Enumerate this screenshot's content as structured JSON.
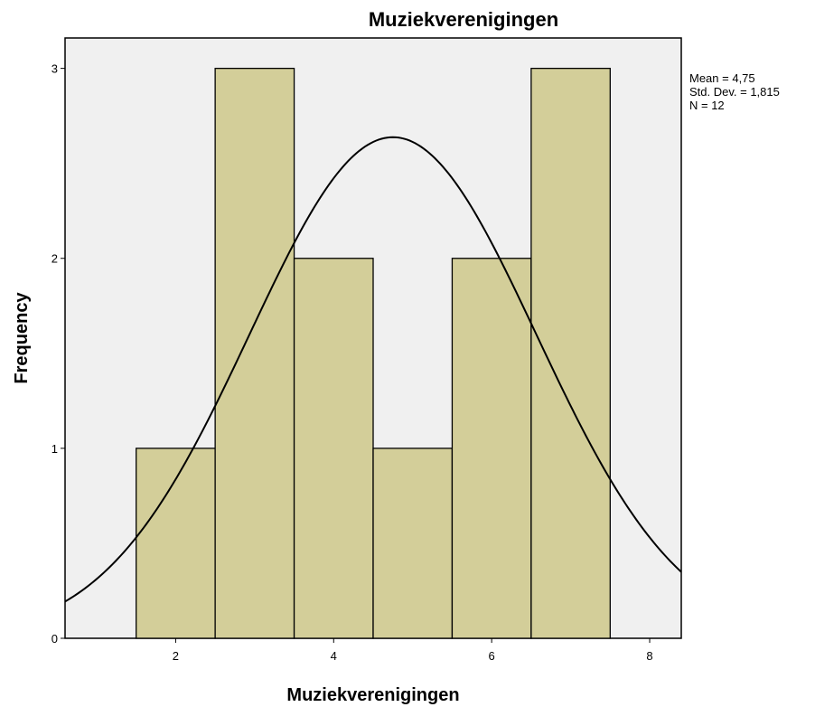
{
  "chart_data": {
    "type": "bar",
    "title": "Muziekverenigingen",
    "xlabel": "Muziekverenigingen",
    "ylabel": "Frequency",
    "xlim": [
      0.6,
      8.4
    ],
    "ylim": [
      0,
      3.16
    ],
    "x_ticks": [
      "2",
      "4",
      "6",
      "8"
    ],
    "y_ticks": [
      "0",
      "1",
      "2",
      "3"
    ],
    "bins": [
      {
        "x0": 1.5,
        "x1": 2.5,
        "value": 1
      },
      {
        "x0": 2.5,
        "x1": 3.5,
        "value": 3
      },
      {
        "x0": 3.5,
        "x1": 4.5,
        "value": 2
      },
      {
        "x0": 4.5,
        "x1": 5.5,
        "value": 1
      },
      {
        "x0": 5.5,
        "x1": 6.5,
        "value": 2
      },
      {
        "x0": 6.5,
        "x1": 7.5,
        "value": 3
      }
    ],
    "normal_curve": {
      "mean": 4.75,
      "sd": 1.815,
      "n": 12,
      "bin_width": 1
    },
    "stats": {
      "mean": "Mean = 4,75",
      "sd": "Std. Dev. = 1,815",
      "n": "N = 12"
    },
    "colors": {
      "bar_fill": "#d3ce99",
      "bar_stroke": "#000000",
      "plot_bg": "#f0f0f0",
      "curve": "#000000"
    },
    "grid": false
  }
}
